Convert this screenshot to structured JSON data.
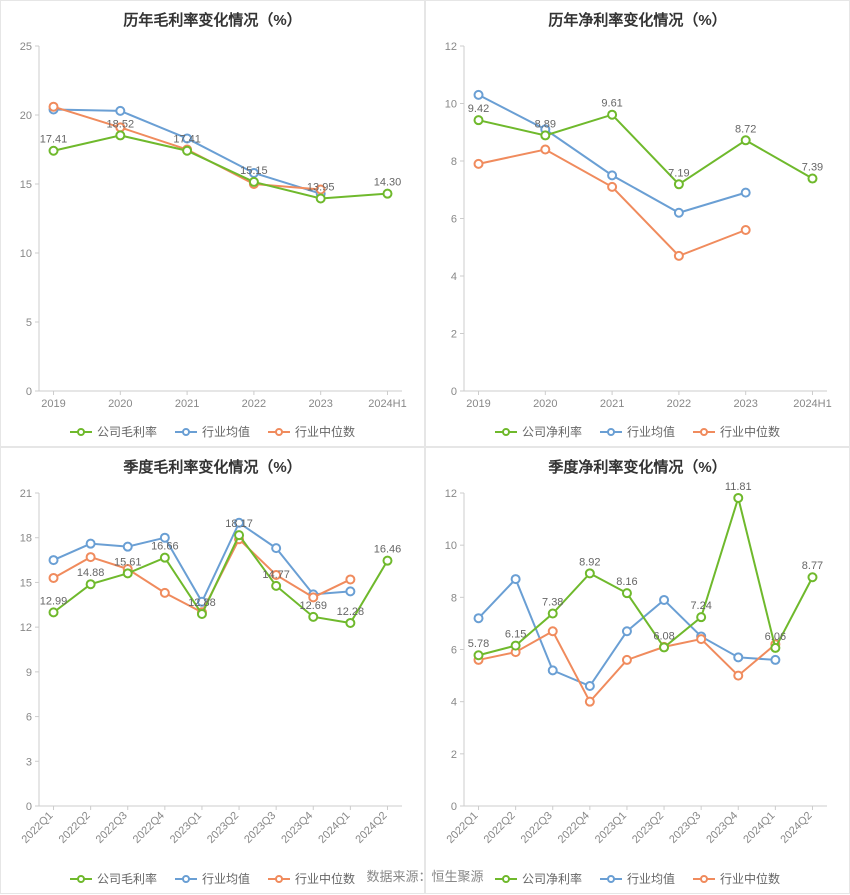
{
  "footer": "数据来源：恒生聚源",
  "colors": {
    "company": "#6fb92c",
    "industry_avg": "#6a9fd4",
    "industry_median": "#f08b5d",
    "axis": "#cccccc",
    "tick_text": "#888888",
    "title_text": "#333333",
    "data_label": "#666666",
    "background": "#ffffff",
    "panel_border": "#e6e6e6"
  },
  "typography": {
    "title_fontsize": 15,
    "tick_fontsize": 11,
    "legend_fontsize": 12,
    "data_label_fontsize": 11,
    "footer_fontsize": 13
  },
  "charts": [
    {
      "id": "annual-gross",
      "title": "历年毛利率变化情况（%）",
      "type": "line",
      "categories": [
        "2019",
        "2020",
        "2021",
        "2022",
        "2023",
        "2024H1"
      ],
      "x_label_rotate": 0,
      "ylim": [
        0,
        25
      ],
      "ytick_step": 5,
      "line_width": 2,
      "marker_radius": 4,
      "series": [
        {
          "key": "company",
          "legend": "公司毛利率",
          "color": "#6fb92c",
          "values": [
            17.41,
            18.52,
            17.41,
            15.15,
            13.95,
            14.3
          ],
          "labels_on": [
            0,
            1,
            2,
            3,
            4,
            5
          ]
        },
        {
          "key": "industry_avg",
          "legend": "行业均值",
          "color": "#6a9fd4",
          "values": [
            20.4,
            20.3,
            18.3,
            15.8,
            14.3,
            null
          ],
          "labels_on": []
        },
        {
          "key": "industry_median",
          "legend": "行业中位数",
          "color": "#f08b5d",
          "values": [
            20.6,
            19.1,
            17.5,
            15.0,
            14.6,
            null
          ],
          "labels_on": []
        }
      ]
    },
    {
      "id": "annual-net",
      "title": "历年净利率变化情况（%）",
      "type": "line",
      "categories": [
        "2019",
        "2020",
        "2021",
        "2022",
        "2023",
        "2024H1"
      ],
      "x_label_rotate": 0,
      "ylim": [
        0,
        12
      ],
      "ytick_step": 2,
      "line_width": 2,
      "marker_radius": 4,
      "series": [
        {
          "key": "company",
          "legend": "公司净利率",
          "color": "#6fb92c",
          "values": [
            9.42,
            8.89,
            9.61,
            7.19,
            8.72,
            7.39
          ],
          "labels_on": [
            0,
            1,
            2,
            3,
            4,
            5
          ]
        },
        {
          "key": "industry_avg",
          "legend": "行业均值",
          "color": "#6a9fd4",
          "values": [
            10.3,
            9.1,
            7.5,
            6.2,
            6.9,
            null
          ],
          "labels_on": []
        },
        {
          "key": "industry_median",
          "legend": "行业中位数",
          "color": "#f08b5d",
          "values": [
            7.9,
            8.4,
            7.1,
            4.7,
            5.6,
            null
          ],
          "labels_on": []
        }
      ]
    },
    {
      "id": "quarterly-gross",
      "title": "季度毛利率变化情况（%）",
      "type": "line",
      "categories": [
        "2022Q1",
        "2022Q2",
        "2022Q3",
        "2022Q4",
        "2023Q1",
        "2023Q2",
        "2023Q3",
        "2023Q4",
        "2024Q1",
        "2024Q2"
      ],
      "x_label_rotate": -45,
      "ylim": [
        0,
        21
      ],
      "ytick_step": 3,
      "line_width": 2,
      "marker_radius": 4,
      "series": [
        {
          "key": "company",
          "legend": "公司毛利率",
          "color": "#6fb92c",
          "values": [
            12.99,
            14.88,
            15.61,
            16.66,
            12.88,
            18.17,
            14.77,
            12.69,
            12.28,
            16.46
          ],
          "labels_on": [
            0,
            1,
            2,
            3,
            4,
            5,
            6,
            7,
            8,
            9
          ]
        },
        {
          "key": "industry_avg",
          "legend": "行业均值",
          "color": "#6a9fd4",
          "values": [
            16.5,
            17.6,
            17.4,
            18.0,
            13.7,
            19.0,
            17.3,
            14.2,
            14.4,
            null
          ],
          "labels_on": []
        },
        {
          "key": "industry_median",
          "legend": "行业中位数",
          "color": "#f08b5d",
          "values": [
            15.3,
            16.7,
            15.9,
            14.3,
            13.0,
            17.9,
            15.5,
            14.0,
            15.2,
            null
          ],
          "labels_on": []
        }
      ]
    },
    {
      "id": "quarterly-net",
      "title": "季度净利率变化情况（%）",
      "type": "line",
      "categories": [
        "2022Q1",
        "2022Q2",
        "2022Q3",
        "2022Q4",
        "2023Q1",
        "2023Q2",
        "2023Q3",
        "2023Q4",
        "2024Q1",
        "2024Q2"
      ],
      "x_label_rotate": -45,
      "ylim": [
        0,
        12
      ],
      "ytick_step": 2,
      "line_width": 2,
      "marker_radius": 4,
      "series": [
        {
          "key": "company",
          "legend": "公司净利率",
          "color": "#6fb92c",
          "values": [
            5.78,
            6.15,
            7.38,
            8.92,
            8.16,
            6.08,
            7.24,
            11.81,
            6.06,
            8.77
          ],
          "labels_on": [
            0,
            1,
            2,
            3,
            4,
            5,
            6,
            7,
            8,
            9
          ]
        },
        {
          "key": "industry_avg",
          "legend": "行业均值",
          "color": "#6a9fd4",
          "values": [
            7.2,
            8.7,
            5.2,
            4.6,
            6.7,
            7.9,
            6.5,
            5.7,
            5.6,
            null
          ],
          "labels_on": []
        },
        {
          "key": "industry_median",
          "legend": "行业中位数",
          "color": "#f08b5d",
          "values": [
            5.6,
            5.9,
            6.7,
            4.0,
            5.6,
            6.1,
            6.4,
            5.0,
            6.2,
            null
          ],
          "labels_on": []
        }
      ]
    }
  ]
}
